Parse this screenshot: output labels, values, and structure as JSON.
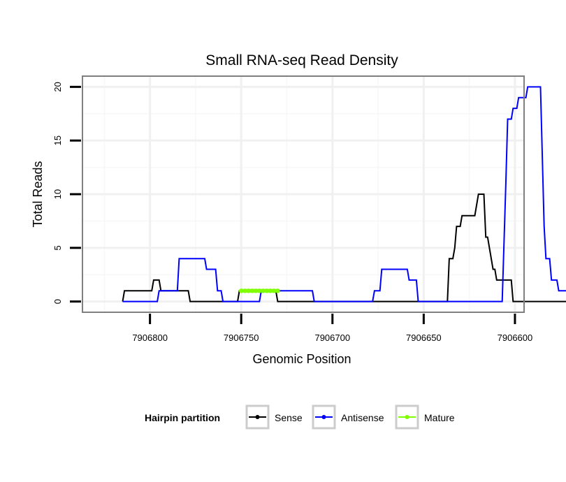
{
  "chart_data": {
    "type": "line",
    "title": "Small RNA-seq Read Density",
    "xlabel": "Genomic Position",
    "ylabel": "Total Reads",
    "x_reversed": true,
    "xlim": [
      7906837,
      7906595
    ],
    "ylim": [
      -1,
      21
    ],
    "x_ticks": [
      7906800,
      7906750,
      7906700,
      7906650,
      7906600
    ],
    "x_tick_labels": [
      "7906800",
      "7906750",
      "7906700",
      "7906650",
      "7906600"
    ],
    "y_ticks": [
      0,
      5,
      10,
      15,
      20
    ],
    "y_tick_labels": [
      "0",
      "5",
      "10",
      "15",
      "20"
    ],
    "legend": {
      "title": "Hairpin partition",
      "position": "bottom",
      "entries": [
        {
          "label": "Sense",
          "color": "#000000"
        },
        {
          "label": "Antisense",
          "color": "#0000ff"
        },
        {
          "label": "Mature",
          "color": "#7fff00"
        }
      ]
    },
    "series": [
      {
        "name": "Sense",
        "color": "#000000",
        "points": [
          [
            7906815,
            0
          ],
          [
            7906814,
            1
          ],
          [
            7906799,
            1
          ],
          [
            7906798,
            2
          ],
          [
            7906795,
            2
          ],
          [
            7906794,
            1
          ],
          [
            7906779,
            1
          ],
          [
            7906778,
            0
          ],
          [
            7906752,
            0
          ],
          [
            7906751,
            1
          ],
          [
            7906731,
            1
          ],
          [
            7906730,
            0
          ],
          [
            7906702,
            0
          ],
          [
            7906701,
            0
          ],
          [
            7906637,
            0
          ],
          [
            7906636,
            4
          ],
          [
            7906634,
            4
          ],
          [
            7906633,
            5
          ],
          [
            7906632,
            7
          ],
          [
            7906630,
            7
          ],
          [
            7906629,
            8
          ],
          [
            7906622,
            8
          ],
          [
            7906620,
            10
          ],
          [
            7906617,
            10
          ],
          [
            7906616,
            6
          ],
          [
            7906615,
            6
          ],
          [
            7906614,
            5
          ],
          [
            7906612,
            3
          ],
          [
            7906611,
            3
          ],
          [
            7906610,
            2
          ],
          [
            7906602,
            2
          ],
          [
            7906601,
            0
          ],
          [
            7906567,
            0
          ]
        ]
      },
      {
        "name": "Antisense",
        "color": "#0000ff",
        "points": [
          [
            7906815,
            0
          ],
          [
            7906796,
            0
          ],
          [
            7906795,
            1
          ],
          [
            7906785,
            1
          ],
          [
            7906784,
            4
          ],
          [
            7906770,
            4
          ],
          [
            7906769,
            3
          ],
          [
            7906764,
            3
          ],
          [
            7906763,
            1
          ],
          [
            7906761,
            1
          ],
          [
            7906760,
            0
          ],
          [
            7906740,
            0
          ],
          [
            7906739,
            1
          ],
          [
            7906711,
            1
          ],
          [
            7906710,
            0
          ],
          [
            7906678,
            0
          ],
          [
            7906677,
            1
          ],
          [
            7906674,
            1
          ],
          [
            7906673,
            3
          ],
          [
            7906659,
            3
          ],
          [
            7906658,
            2
          ],
          [
            7906654,
            2
          ],
          [
            7906653,
            0
          ],
          [
            7906607,
            0
          ],
          [
            7906605,
            11
          ],
          [
            7906604,
            17
          ],
          [
            7906602,
            17
          ],
          [
            7906601,
            18
          ],
          [
            7906599,
            18
          ],
          [
            7906598,
            19
          ],
          [
            7906594,
            19
          ],
          [
            7906593,
            20
          ],
          [
            7906586,
            20
          ],
          [
            7906584,
            7
          ],
          [
            7906583,
            4
          ],
          [
            7906581,
            4
          ],
          [
            7906580,
            2
          ],
          [
            7906577,
            2
          ],
          [
            7906576,
            1
          ],
          [
            7906567,
            1
          ]
        ]
      },
      {
        "name": "Mature",
        "color": "#7fff00",
        "points": [
          [
            7906750,
            1
          ],
          [
            7906729,
            1
          ]
        ]
      }
    ]
  }
}
